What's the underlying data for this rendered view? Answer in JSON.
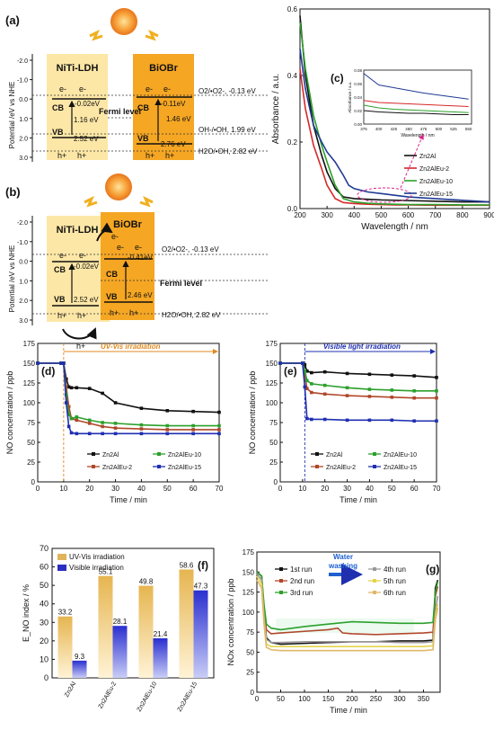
{
  "panel_a": {
    "label": "(a)",
    "ylabel": "Potential /eV vs NHE",
    "yticks": [
      "-2.0",
      "-1.0",
      "0.0",
      "1.0",
      "2.0",
      "3.0"
    ],
    "ltitle": "NiTi-LDH",
    "rtitle": "BiOBr",
    "l_cb": "-0.02eV",
    "l_gap": "1.16 eV",
    "l_vb": "2.52 eV",
    "r_cb": "-0.11eV",
    "r_gap": "1.46 eV",
    "r_vb": "2.76 eV",
    "fermi": "Fermi level",
    "o2": "O2/•O2-, -0.13 eV",
    "oh": "OH-/•OH, 1.99 eV",
    "h2o": "H2O/•OH, 2.82 eV",
    "cb": "CB",
    "vb": "VB",
    "electron": "e-",
    "hole": "h+"
  },
  "panel_b": {
    "label": "(b)",
    "ylabel": "Potential /eV vs NHE",
    "yticks": [
      "-2.0",
      "-1.0",
      "0.0",
      "1.0",
      "2.0",
      "3.0"
    ],
    "ltitle": "NiTi-LDH",
    "rtitle": "BiOBr",
    "l_cb": "-0.02eV",
    "l_vb": "2.52 eV",
    "r_cb": "-0.41eV",
    "r_vb": "2.46 eV",
    "fermi": "Fermi level",
    "o2": "O2/•O2-, -0.13 eV",
    "h2o": "H2O/•OH, 2.82 eV",
    "cb": "CB",
    "vb": "VB",
    "electron": "e-",
    "hole": "h+"
  },
  "chart_data": [
    {
      "id": "c",
      "type": "line",
      "panel_label": "(c)",
      "xlabel": "Wavelength / nm",
      "ylabel": "Absorbance / a.u.",
      "xlim": [
        200,
        900
      ],
      "ylim": [
        0,
        0.6
      ],
      "xticks": [
        200,
        300,
        400,
        500,
        600,
        700,
        800,
        900
      ],
      "yticks": [
        0.0,
        0.2,
        0.4,
        0.6
      ],
      "series": [
        {
          "name": "Zn2Al",
          "color": "#111111",
          "x": [
            200,
            220,
            250,
            280,
            300,
            330,
            360,
            400,
            450,
            500,
            550,
            600,
            700,
            800,
            900
          ],
          "y": [
            0.58,
            0.4,
            0.25,
            0.16,
            0.11,
            0.06,
            0.035,
            0.03,
            0.028,
            0.026,
            0.025,
            0.024,
            0.022,
            0.02,
            0.02
          ]
        },
        {
          "name": "Zn2AlEu-2",
          "color": "#d62728",
          "x": [
            200,
            220,
            250,
            280,
            300,
            330,
            360,
            400,
            450,
            500,
            550,
            600,
            700,
            800,
            900
          ],
          "y": [
            0.42,
            0.3,
            0.19,
            0.12,
            0.07,
            0.03,
            0.018,
            0.015,
            0.013,
            0.012,
            0.011,
            0.011,
            0.01,
            0.01,
            0.01
          ]
        },
        {
          "name": "Zn2AlEu-10",
          "color": "#2ca02c",
          "x": [
            200,
            220,
            250,
            280,
            300,
            330,
            360,
            400,
            450,
            500,
            550,
            600,
            700,
            800,
            900
          ],
          "y": [
            0.56,
            0.42,
            0.28,
            0.19,
            0.14,
            0.07,
            0.03,
            0.02,
            0.016,
            0.014,
            0.013,
            0.012,
            0.012,
            0.011,
            0.011
          ]
        },
        {
          "name": "Zn2AlEu-15",
          "color": "#1f3a93",
          "x": [
            200,
            220,
            250,
            280,
            300,
            330,
            360,
            380,
            400,
            450,
            500,
            550,
            600,
            700,
            800,
            900
          ],
          "y": [
            0.48,
            0.36,
            0.25,
            0.2,
            0.17,
            0.14,
            0.1,
            0.07,
            0.06,
            0.05,
            0.045,
            0.04,
            0.035,
            0.03,
            0.025,
            0.02
          ]
        }
      ],
      "inset": {
        "xlabel": "Wavelength / nm",
        "ylabel": "Absorbance / a.u.",
        "xticks": [
          375,
          400,
          425,
          450,
          475,
          500,
          525,
          550
        ],
        "yticks": [
          0.0,
          0.02,
          0.04,
          0.06,
          0.08
        ]
      }
    },
    {
      "id": "d",
      "type": "line",
      "panel_label": "(d)",
      "annotation": "UV-Vis irradiation",
      "xlabel": "Time / min",
      "ylabel": "NO concentration / ppb",
      "xlim": [
        0,
        70
      ],
      "ylim": [
        0,
        175
      ],
      "xticks": [
        0,
        10,
        20,
        30,
        40,
        50,
        60,
        70
      ],
      "yticks": [
        0,
        25,
        50,
        75,
        100,
        125,
        150,
        175
      ],
      "series": [
        {
          "name": "Zn2Al",
          "color": "#111111",
          "x": [
            0,
            9,
            10,
            11,
            12,
            13,
            15,
            20,
            25,
            30,
            40,
            50,
            60,
            70
          ],
          "y": [
            150,
            150,
            150,
            130,
            120,
            119,
            119,
            118,
            112,
            100,
            93,
            90,
            89,
            88
          ]
        },
        {
          "name": "Zn2AlEu-2",
          "color": "#b0472a",
          "x": [
            0,
            9,
            10,
            11,
            12,
            13,
            15,
            20,
            25,
            30,
            40,
            50,
            60,
            70
          ],
          "y": [
            150,
            150,
            150,
            120,
            95,
            80,
            78,
            74,
            70,
            68,
            67,
            66,
            66,
            66
          ]
        },
        {
          "name": "Zn2AlEu-10",
          "color": "#2ca02c",
          "x": [
            0,
            9,
            10,
            11,
            12,
            13,
            15,
            20,
            25,
            30,
            40,
            50,
            60,
            70
          ],
          "y": [
            150,
            150,
            150,
            110,
            85,
            80,
            82,
            78,
            75,
            74,
            72,
            71,
            71,
            71
          ]
        },
        {
          "name": "Zn2AlEu-15",
          "color": "#1f2fb0",
          "x": [
            0,
            9,
            10,
            11,
            12,
            13,
            15,
            20,
            25,
            30,
            40,
            50,
            60,
            70
          ],
          "y": [
            150,
            150,
            150,
            100,
            70,
            62,
            61,
            61,
            61,
            61,
            61,
            61,
            61,
            61
          ]
        }
      ]
    },
    {
      "id": "e",
      "type": "line",
      "panel_label": "(e)",
      "annotation": "Visible light irradiation",
      "xlabel": "Time / min",
      "ylabel": "NO concentration / ppb",
      "xlim": [
        0,
        70
      ],
      "ylim": [
        0,
        175
      ],
      "xticks": [
        0,
        10,
        20,
        30,
        40,
        50,
        60,
        70
      ],
      "yticks": [
        0,
        25,
        50,
        75,
        100,
        125,
        150,
        175
      ],
      "series": [
        {
          "name": "Zn2Al",
          "color": "#111111",
          "x": [
            0,
            10,
            11,
            12,
            14,
            20,
            30,
            40,
            50,
            60,
            70
          ],
          "y": [
            150,
            150,
            148,
            140,
            138,
            139,
            137,
            136,
            135,
            134,
            132
          ]
        },
        {
          "name": "Zn2AlEu-2",
          "color": "#b0472a",
          "x": [
            0,
            10,
            11,
            12,
            14,
            20,
            30,
            40,
            50,
            60,
            70
          ],
          "y": [
            150,
            150,
            135,
            118,
            113,
            111,
            109,
            108,
            107,
            106,
            106
          ]
        },
        {
          "name": "Zn2AlEu-10",
          "color": "#2ca02c",
          "x": [
            0,
            10,
            11,
            12,
            14,
            20,
            30,
            40,
            50,
            60,
            70
          ],
          "y": [
            150,
            150,
            140,
            128,
            124,
            122,
            119,
            117,
            116,
            115,
            115
          ]
        },
        {
          "name": "Zn2AlEu-15",
          "color": "#1f2fb0",
          "x": [
            0,
            10,
            11,
            12,
            14,
            20,
            30,
            40,
            50,
            60,
            70
          ],
          "y": [
            150,
            150,
            120,
            80,
            79,
            79,
            78,
            78,
            78,
            77,
            77
          ]
        }
      ]
    },
    {
      "id": "f",
      "type": "bar",
      "panel_label": "(f)",
      "ylabel": "E_NO index / %",
      "ylim": [
        0,
        70
      ],
      "yticks": [
        0,
        10,
        20,
        30,
        40,
        50,
        60,
        70
      ],
      "categories": [
        "Zn2Al",
        "Zn2AlEu-2",
        "Zn2AlEu-10",
        "Zn2AlEu-15"
      ],
      "series": [
        {
          "name": "UV-Vis irradiation",
          "color": "#e0b45a",
          "values": [
            33.2,
            55.1,
            49.8,
            58.6
          ]
        },
        {
          "name": "Visible irradiation",
          "color": "#2a2fc0",
          "values": [
            9.3,
            28.1,
            21.4,
            47.3
          ]
        }
      ]
    },
    {
      "id": "g",
      "type": "line",
      "panel_label": "(g)",
      "annotation": "Water washing",
      "xlabel": "Time / min",
      "ylabel": "NOx concentration / ppb",
      "xlim": [
        0,
        385
      ],
      "ylim": [
        0,
        175
      ],
      "xticks": [
        0,
        50,
        100,
        150,
        200,
        250,
        300,
        350
      ],
      "yticks": [
        0,
        25,
        50,
        75,
        100,
        125,
        150,
        175
      ],
      "series": [
        {
          "name": "1st run",
          "color": "#111111",
          "x": [
            0,
            10,
            15,
            20,
            30,
            50,
            100,
            150,
            200,
            250,
            300,
            350,
            370,
            375,
            380
          ],
          "y": [
            150,
            145,
            100,
            68,
            62,
            60,
            61,
            62,
            63,
            63,
            64,
            64,
            65,
            130,
            140
          ]
        },
        {
          "name": "2nd run",
          "color": "#b0472a",
          "x": [
            0,
            10,
            15,
            20,
            30,
            50,
            100,
            150,
            170,
            180,
            200,
            250,
            300,
            350,
            370,
            375,
            380
          ],
          "y": [
            150,
            145,
            105,
            78,
            73,
            74,
            76,
            78,
            80,
            74,
            73,
            72,
            73,
            74,
            75,
            120,
            132
          ]
        },
        {
          "name": "3rd run",
          "color": "#2ca02c",
          "x": [
            0,
            10,
            15,
            20,
            30,
            50,
            100,
            150,
            200,
            250,
            300,
            350,
            370,
            375,
            380
          ],
          "y": [
            150,
            145,
            110,
            85,
            80,
            78,
            82,
            85,
            88,
            87,
            86,
            86,
            87,
            125,
            138
          ]
        },
        {
          "name": "4th run",
          "color": "#9a9a9a",
          "x": [
            0,
            10,
            15,
            20,
            30,
            50,
            100,
            150,
            200,
            250,
            300,
            350,
            370,
            375,
            380
          ],
          "y": [
            148,
            140,
            95,
            66,
            62,
            62,
            63,
            63,
            63,
            63,
            62,
            62,
            63,
            100,
            120
          ]
        },
        {
          "name": "5th run",
          "color": "#e3d44a",
          "x": [
            0,
            10,
            15,
            20,
            30,
            50,
            100,
            150,
            200,
            250,
            300,
            350,
            370,
            375,
            380
          ],
          "y": [
            145,
            135,
            90,
            60,
            57,
            57,
            57,
            57,
            57,
            57,
            57,
            57,
            58,
            95,
            110
          ]
        },
        {
          "name": "6th run",
          "color": "#e0b86a",
          "x": [
            0,
            10,
            15,
            20,
            30,
            50,
            100,
            150,
            200,
            250,
            300,
            350,
            370,
            375,
            380
          ],
          "y": [
            140,
            130,
            85,
            56,
            53,
            52,
            52,
            52,
            52,
            52,
            52,
            52,
            53,
            90,
            105
          ]
        }
      ]
    }
  ]
}
